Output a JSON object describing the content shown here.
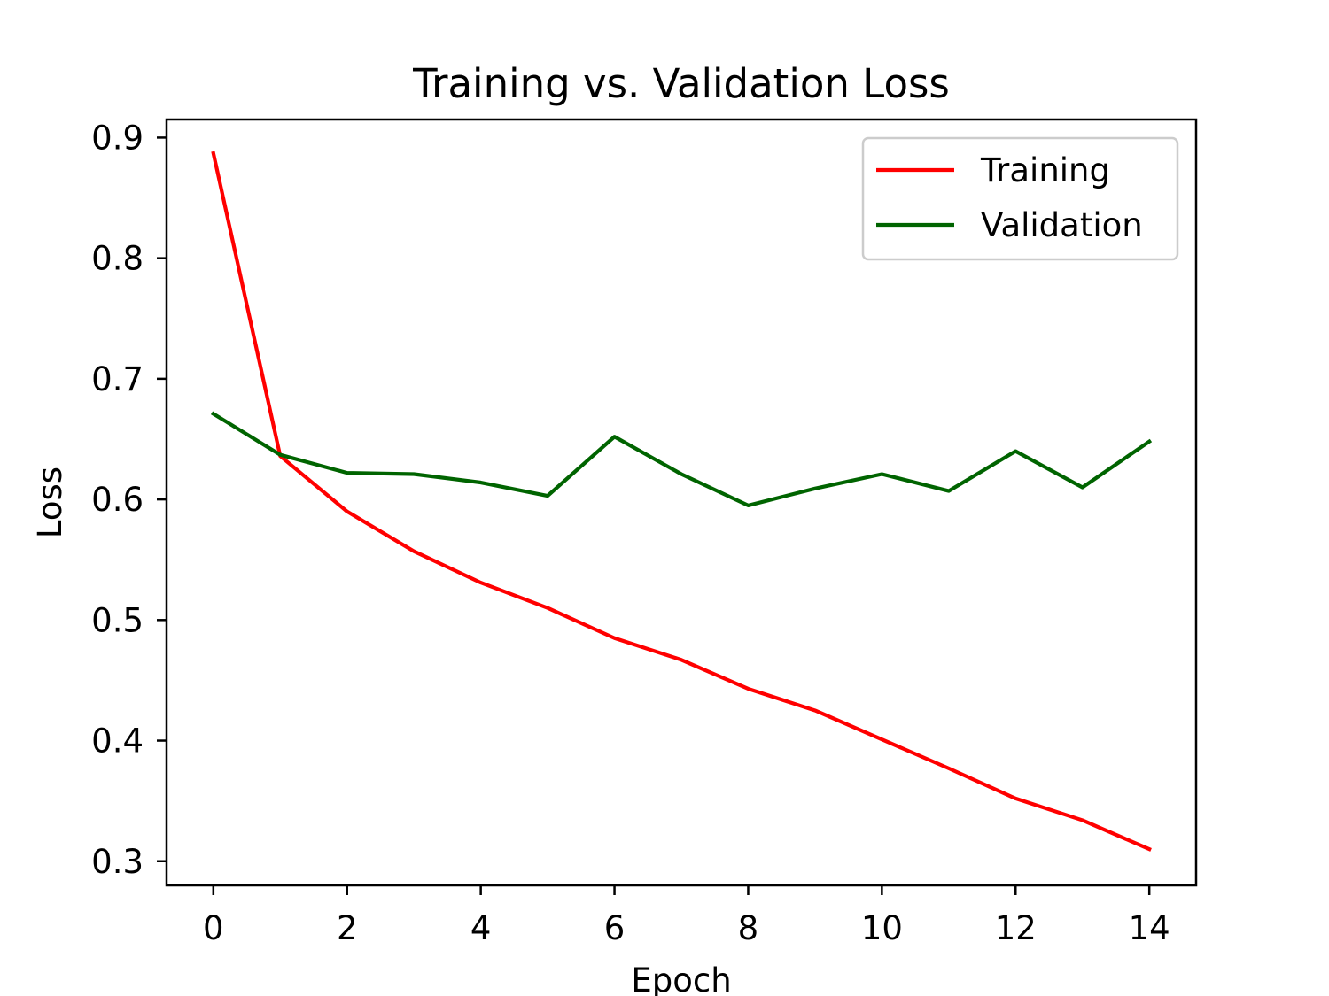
{
  "chart_data": {
    "type": "line",
    "title": "Training vs. Validation Loss",
    "xlabel": "Epoch",
    "ylabel": "Loss",
    "x": [
      0,
      1,
      2,
      3,
      4,
      5,
      6,
      7,
      8,
      9,
      10,
      11,
      12,
      13,
      14
    ],
    "xlim": [
      -0.7,
      14.7
    ],
    "ylim": [
      0.28,
      0.915
    ],
    "xticks": [
      0,
      2,
      4,
      6,
      8,
      10,
      12,
      14
    ],
    "xtick_labels": [
      "0",
      "2",
      "4",
      "6",
      "8",
      "10",
      "12",
      "14"
    ],
    "yticks": [
      0.3,
      0.4,
      0.5,
      0.6,
      0.7,
      0.8,
      0.9
    ],
    "ytick_labels": [
      "0.3",
      "0.4",
      "0.5",
      "0.6",
      "0.7",
      "0.8",
      "0.9"
    ],
    "grid": false,
    "legend_position": "top-right",
    "series": [
      {
        "name": "Training",
        "color": "#ff0000",
        "values": [
          0.887,
          0.636,
          0.59,
          0.557,
          0.531,
          0.51,
          0.485,
          0.467,
          0.443,
          0.425,
          0.401,
          0.377,
          0.352,
          0.334,
          0.31
        ]
      },
      {
        "name": "Validation",
        "color": "#006400",
        "values": [
          0.671,
          0.637,
          0.622,
          0.621,
          0.614,
          0.603,
          0.652,
          0.621,
          0.595,
          0.609,
          0.621,
          0.607,
          0.64,
          0.61,
          0.648
        ]
      }
    ]
  }
}
